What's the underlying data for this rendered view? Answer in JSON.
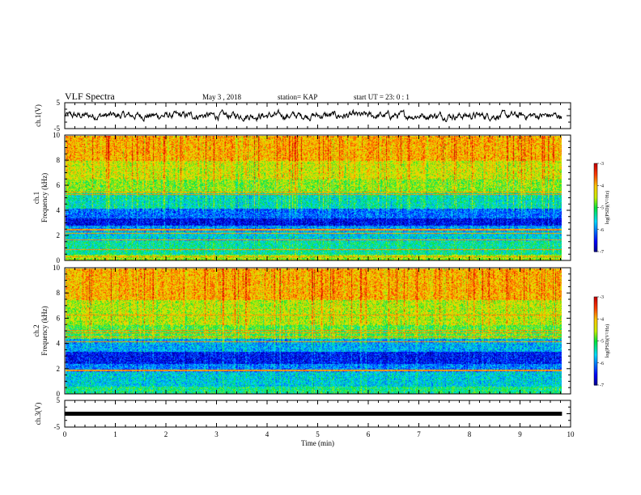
{
  "header": {
    "title": "VLF Spectra",
    "date": "May 3 , 2018",
    "station": "station= KAP",
    "start": "start UT = 23: 0 : 1"
  },
  "chart_data": [
    {
      "type": "line",
      "panel": "ch1-waveform",
      "ylabel": "ch.1(V)",
      "ylim": [
        -5,
        5
      ],
      "yticks": [
        "5",
        "-5"
      ],
      "xlim": [
        0,
        10
      ],
      "data_end_min": 9.83,
      "amplitude_note": "noisy signal roughly between -2 and 2 V",
      "color": "#000000"
    },
    {
      "type": "heatmap",
      "panel": "ch1-spectrogram",
      "ylabel_line1": "ch.1",
      "ylabel_line2": "Frequency (kHz)",
      "ylim": [
        0,
        10
      ],
      "yticks": [
        "0",
        "2",
        "4",
        "6",
        "8",
        "10"
      ],
      "xlim": [
        0,
        10
      ],
      "data_end_min": 9.83,
      "colorbar": {
        "label": "log(PSD)(V²/Hz)",
        "range": [
          -7,
          -3
        ],
        "ticks": [
          "-3",
          "-4",
          "-5",
          "-6",
          "-7"
        ]
      },
      "bands": [
        {
          "f_lo": 0.0,
          "f_hi": 0.5,
          "level": -4.6
        },
        {
          "f_lo": 0.5,
          "f_hi": 1.6,
          "level": -5.3
        },
        {
          "f_lo": 1.6,
          "f_hi": 2.4,
          "level": -5.6
        },
        {
          "f_lo": 2.4,
          "f_hi": 2.8,
          "level": -5.9
        },
        {
          "f_lo": 2.8,
          "f_hi": 3.4,
          "level": -6.6
        },
        {
          "f_lo": 3.4,
          "f_hi": 4.2,
          "level": -6.1
        },
        {
          "f_lo": 4.2,
          "f_hi": 5.4,
          "level": -5.4
        },
        {
          "f_lo": 5.4,
          "f_hi": 6.5,
          "level": -4.7
        },
        {
          "f_lo": 6.5,
          "f_hi": 8.0,
          "level": -4.4
        },
        {
          "f_lo": 8.0,
          "f_hi": 10.0,
          "level": -4.0
        }
      ],
      "lines_khz": [
        0.3,
        0.9,
        1.7,
        2.2,
        2.5,
        5.3,
        5.5
      ]
    },
    {
      "type": "heatmap",
      "panel": "ch2-spectrogram",
      "ylabel_line1": "ch.2",
      "ylabel_line2": "Frequency (kHz)",
      "ylim": [
        0,
        10
      ],
      "yticks": [
        "0",
        "2",
        "4",
        "6",
        "8",
        "10"
      ],
      "xlim": [
        0,
        10
      ],
      "data_end_min": 9.83,
      "colorbar": {
        "label": "log(PSD)(V²/Hz)",
        "range": [
          -7,
          -3
        ],
        "ticks": [
          "-3",
          "-4",
          "-5",
          "-6",
          "-7"
        ]
      },
      "bands": [
        {
          "f_lo": 0.0,
          "f_hi": 0.6,
          "level": -5.2
        },
        {
          "f_lo": 0.6,
          "f_hi": 1.8,
          "level": -5.6
        },
        {
          "f_lo": 1.8,
          "f_hi": 2.4,
          "level": -6.0
        },
        {
          "f_lo": 2.4,
          "f_hi": 3.4,
          "level": -6.5
        },
        {
          "f_lo": 3.4,
          "f_hi": 4.4,
          "level": -5.8
        },
        {
          "f_lo": 4.4,
          "f_hi": 5.5,
          "level": -4.9
        },
        {
          "f_lo": 5.5,
          "f_hi": 7.5,
          "level": -4.5
        },
        {
          "f_lo": 7.5,
          "f_hi": 10.0,
          "level": -4.0
        }
      ],
      "lines_khz": [
        1.9,
        4.2,
        4.6,
        4.9,
        5.1,
        6.3
      ]
    },
    {
      "type": "line",
      "panel": "ch3-waveform",
      "ylabel": "ch.3(V)",
      "ylim": [
        -5,
        5
      ],
      "yticks": [
        "5",
        "-5"
      ],
      "xlim": [
        0,
        10
      ],
      "data_end_min": 9.83,
      "constant_value": 0,
      "color": "#000000",
      "xlabel": "Time (min)",
      "xticks": [
        "0",
        "1",
        "2",
        "3",
        "4",
        "5",
        "6",
        "7",
        "8",
        "9",
        "10"
      ]
    }
  ]
}
